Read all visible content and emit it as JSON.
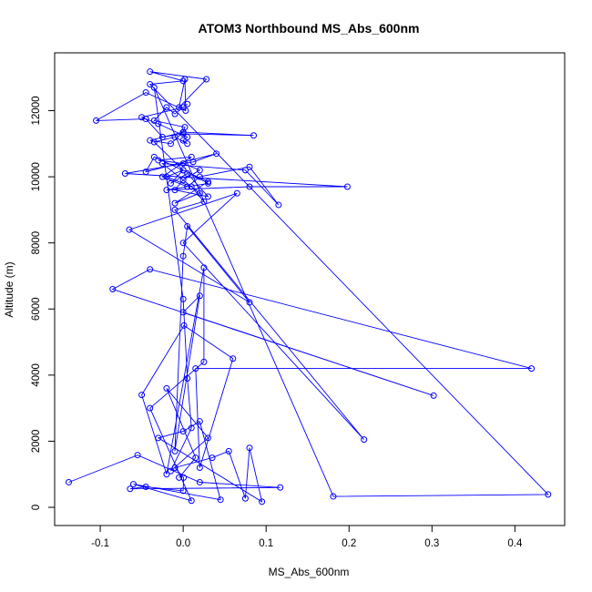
{
  "chart_data": {
    "type": "line",
    "title": "ATOM3 Northbound MS_Abs_600nm",
    "xlabel": "MS_Abs_600nm",
    "ylabel": "Altitude (m)",
    "xlim": [
      -0.155,
      0.46
    ],
    "ylim": [
      -550,
      13750
    ],
    "x_ticks": [
      -0.1,
      0.0,
      0.1,
      0.2,
      0.3,
      0.4
    ],
    "x_tick_labels": [
      "-0.1",
      "0.0",
      "0.1",
      "0.2",
      "0.3",
      "0.4"
    ],
    "y_ticks": [
      0,
      2000,
      4000,
      6000,
      8000,
      10000,
      12000
    ],
    "y_tick_labels": [
      "0",
      "2000",
      "4000",
      "6000",
      "8000",
      "10000",
      "12000"
    ],
    "grid": false,
    "series": [
      {
        "color": "#0000ff",
        "marker": "open-circle",
        "x": [
          -0.138,
          -0.055,
          0.02,
          0.117,
          -0.064,
          -0.045,
          0.0,
          0.0005,
          -0.01,
          0.035,
          0.055,
          0.075,
          0.08,
          0.095,
          -0.03,
          0.0,
          0.02,
          0.045,
          -0.06,
          0.01,
          -0.04,
          0.025,
          0.025,
          -0.02,
          -0.05,
          0.001,
          0.06,
          0.02,
          0.015,
          0.42,
          -0.04,
          -0.085,
          0.302,
          0.0,
          0.02,
          -0.01,
          0.0,
          0.005,
          0.08,
          -0.065,
          0.065,
          0.0,
          0.218,
          -0.01,
          0.025,
          0.01,
          -0.02,
          0.0,
          -0.015,
          0.005,
          0.03,
          -0.01,
          0.0,
          0.02,
          0.0,
          -0.03,
          0.01,
          -0.025,
          0.005,
          0.02,
          0.08,
          0.115,
          0.075,
          -0.025,
          0.02,
          -0.01,
          0.03,
          -0.035,
          -0.045,
          0.04,
          0.012,
          -0.07,
          0.198,
          0.08,
          -0.02,
          0.03,
          0.0,
          -0.035,
          -0.01,
          0.005,
          0.0,
          0.005,
          -0.03,
          -0.05,
          0.0,
          0.005,
          -0.01,
          -0.02,
          -0.035,
          0.002,
          0.0,
          -0.04,
          -0.015,
          0.0,
          0.085,
          0.0,
          -0.025,
          -0.045,
          -0.105,
          -0.045,
          0.003,
          0.002,
          -0.005,
          0.028,
          -0.04,
          0.0,
          -0.04,
          0.44,
          0.181,
          -0.035,
          0.0,
          0.005,
          0.01,
          -0.015,
          0.03,
          -0.02,
          0.015,
          -0.005
        ],
        "y": [
          760,
          1580,
          760,
          600,
          560,
          620,
          500,
          900,
          1200,
          1500,
          1700,
          270,
          1800,
          170,
          2100,
          2300,
          2600,
          230,
          700,
          200,
          3000,
          4400,
          7250,
          1000,
          3400,
          5500,
          4500,
          1200,
          4200,
          4200,
          7200,
          6600,
          3380,
          5900,
          6400,
          1700,
          7600,
          8500,
          6200,
          8400,
          9500,
          8000,
          2050,
          9000,
          9250,
          9700,
          10000,
          10200,
          9800,
          10100,
          9400,
          9600,
          9900,
          10200,
          10400,
          10500,
          10600,
          10000,
          9700,
          10000,
          10300,
          9150,
          10200,
          10400,
          9500,
          9200,
          9850,
          10600,
          10150,
          10700,
          10450,
          10100,
          9700,
          9700,
          9600,
          9800,
          10200,
          11050,
          11200,
          11000,
          11100,
          11200,
          11600,
          11800,
          12100,
          12200,
          11900,
          12100,
          11700,
          11500,
          11350,
          11100,
          11000,
          11350,
          11250,
          11300,
          11200,
          11750,
          11700,
          12550,
          12000,
          12950,
          12100,
          12950,
          13180,
          12900,
          12800,
          390,
          330,
          12700,
          6300,
          3900,
          2400,
          1100,
          2100,
          3600,
          1500,
          900
        ]
      }
    ]
  }
}
